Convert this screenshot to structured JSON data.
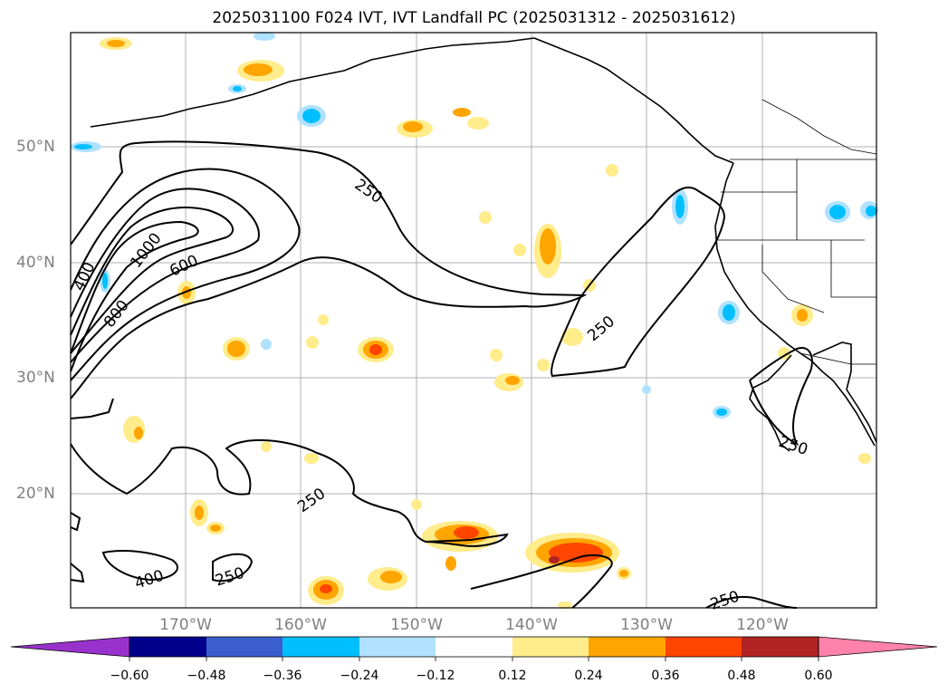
{
  "title": "2025031100 F024 IVT, IVT Landfall PC (2025031312 - 2025031612)",
  "lat_labels": [
    "50°N",
    "40°N",
    "30°N",
    "20°N"
  ],
  "lon_labels": [
    "170°W",
    "160°W",
    "150°W",
    "140°W",
    "130°W",
    "120°W"
  ],
  "contour_labels": [
    "1000",
    "800",
    "600",
    "400",
    "250",
    "250",
    "250",
    "250",
    "400",
    "250",
    "250"
  ],
  "colorbar": {
    "ticks": [
      "−0.60",
      "−0.48",
      "−0.36",
      "−0.24",
      "−0.12",
      "0.12",
      "0.24",
      "0.36",
      "0.48",
      "0.60"
    ],
    "colors": [
      "#9932cc",
      "#00008b",
      "#3a5fcd",
      "#00bfff",
      "#b0e2ff",
      "#ffffff",
      "#ffec8b",
      "#ffa500",
      "#ff4500",
      "#b22222",
      "#ff82ab"
    ]
  },
  "map": {
    "lon_range": [
      -180,
      -110
    ],
    "lat_range": [
      10,
      60
    ],
    "gridlines": true,
    "contour_levels": [
      250,
      400,
      600,
      800,
      1000
    ]
  }
}
